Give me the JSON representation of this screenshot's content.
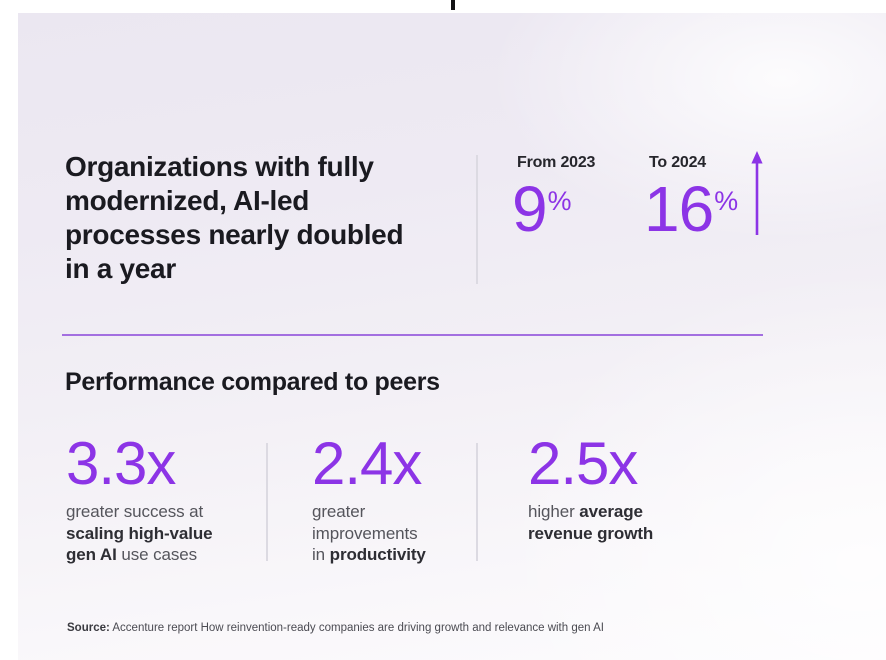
{
  "colors": {
    "accent_purple": "#8C34E6",
    "divider_purple": "#A36FE0",
    "heading_text": "#1A1A20",
    "body_text": "#55555C",
    "bold_text": "#2E2E34",
    "source_text": "#4B4B52",
    "gray_divider": "#DCDAE2",
    "card_background_top": "#EBE7F1",
    "card_background_bottom": "#FCFBFD",
    "page_background": "#FFFFFF"
  },
  "headline": {
    "lines": [
      "Organizations with fully",
      "modernized, AI-led",
      "processes nearly doubled",
      "in a year"
    ]
  },
  "comparison": {
    "from": {
      "label": "From 2023",
      "value": "9",
      "unit": "%"
    },
    "to": {
      "label": "To 2024",
      "value": "16",
      "unit": "%"
    },
    "arrow_icon": "arrow-up"
  },
  "performance": {
    "heading": "Performance compared to peers",
    "stats": [
      {
        "value": "3.3x",
        "desc": [
          {
            "text": "greater success at",
            "bold": false,
            "break": true
          },
          {
            "text": "scaling high-value",
            "bold": true,
            "break": true
          },
          {
            "text": "gen AI",
            "bold": true,
            "break": false
          },
          {
            "text": " use cases",
            "bold": false,
            "break": false
          }
        ]
      },
      {
        "value": "2.4x",
        "desc": [
          {
            "text": "greater",
            "bold": false,
            "break": true
          },
          {
            "text": "improvements",
            "bold": false,
            "break": true
          },
          {
            "text": "in ",
            "bold": false,
            "break": false
          },
          {
            "text": "productivity",
            "bold": true,
            "break": false
          }
        ]
      },
      {
        "value": "2.5x",
        "desc": [
          {
            "text": "higher ",
            "bold": false,
            "break": false
          },
          {
            "text": "average",
            "bold": true,
            "break": true
          },
          {
            "text": "revenue growth",
            "bold": true,
            "break": false
          }
        ]
      }
    ]
  },
  "source": {
    "prefix": "Source:",
    "text": "Accenture report How reinvention-ready companies are driving growth and relevance with gen AI"
  },
  "chart_data": {
    "type": "table",
    "title": "Organizations with fully modernized, AI-led processes nearly doubled in a year",
    "series": [
      {
        "name": "Organizations with fully modernized, AI-led processes",
        "categories": [
          "From 2023",
          "To 2024"
        ],
        "values": [
          9,
          16
        ],
        "unit": "%"
      }
    ],
    "peer_comparison": {
      "title": "Performance compared to peers",
      "categories": [
        "greater success at scaling high-value gen AI use cases",
        "greater improvements in productivity",
        "higher average revenue growth"
      ],
      "values": [
        3.3,
        2.4,
        2.5
      ],
      "unit": "x"
    },
    "source": "Accenture report How reinvention-ready companies are driving growth and relevance with gen AI"
  }
}
